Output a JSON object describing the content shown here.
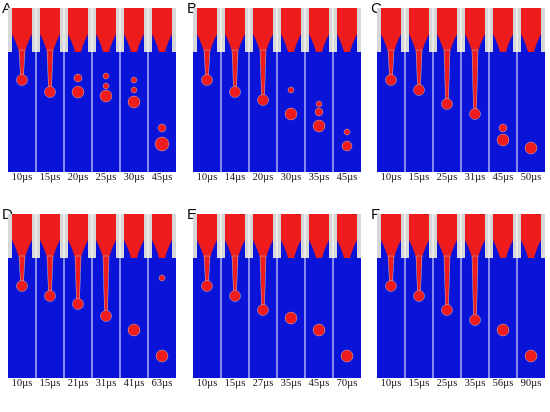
{
  "colors": {
    "fluid_red": "#ee1c1c",
    "fluid_blue": "#0a14d8",
    "wall_gray": "#d7d7d7",
    "interface_gray": "#b9b9c8"
  },
  "panels": [
    {
      "label": "A",
      "times": [
        "10µs",
        "15µs",
        "20µs",
        "25µs",
        "30µs",
        "45µs"
      ],
      "frames": [
        {
          "lig": 28,
          "drops": []
        },
        {
          "lig": 40,
          "drops": []
        },
        {
          "lig": 0,
          "drops": [
            [
              26,
              4
            ],
            [
              40,
              6
            ]
          ]
        },
        {
          "lig": 0,
          "drops": [
            [
              24,
              3
            ],
            [
              34,
              3
            ],
            [
              44,
              6
            ]
          ]
        },
        {
          "lig": 0,
          "drops": [
            [
              28,
              3
            ],
            [
              38,
              3
            ],
            [
              50,
              6
            ]
          ]
        },
        {
          "lig": 0,
          "drops": [
            [
              76,
              4
            ],
            [
              92,
              7
            ]
          ]
        }
      ]
    },
    {
      "label": "B",
      "times": [
        "10µs",
        "14µs",
        "20µs",
        "30µs",
        "35µs",
        "45µs"
      ],
      "frames": [
        {
          "lig": 28,
          "drops": []
        },
        {
          "lig": 40,
          "drops": []
        },
        {
          "lig": 48,
          "drops": []
        },
        {
          "lig": 0,
          "drops": [
            [
              38,
              3
            ],
            [
              62,
              6
            ]
          ]
        },
        {
          "lig": 0,
          "drops": [
            [
              52,
              3
            ],
            [
              60,
              4
            ],
            [
              74,
              6
            ]
          ]
        },
        {
          "lig": 0,
          "drops": [
            [
              80,
              3
            ],
            [
              94,
              5
            ]
          ]
        }
      ]
    },
    {
      "label": "C",
      "times": [
        "10µs",
        "15µs",
        "25µs",
        "31µs",
        "45µs",
        "50µs"
      ],
      "frames": [
        {
          "lig": 28,
          "drops": []
        },
        {
          "lig": 38,
          "drops": []
        },
        {
          "lig": 52,
          "drops": []
        },
        {
          "lig": 62,
          "drops": []
        },
        {
          "lig": 0,
          "drops": [
            [
              76,
              4
            ],
            [
              88,
              6
            ]
          ]
        },
        {
          "lig": 0,
          "drops": [
            [
              96,
              6
            ]
          ]
        }
      ]
    },
    {
      "label": "D",
      "times": [
        "10µs",
        "15µs",
        "21µs",
        "31µs",
        "41µs",
        "63µs"
      ],
      "frames": [
        {
          "lig": 28,
          "drops": []
        },
        {
          "lig": 38,
          "drops": []
        },
        {
          "lig": 46,
          "drops": []
        },
        {
          "lig": 58,
          "drops": []
        },
        {
          "lig": 0,
          "drops": [
            [
              72,
              6
            ]
          ]
        },
        {
          "lig": 0,
          "drops": [
            [
              20,
              3
            ],
            [
              98,
              6
            ]
          ]
        }
      ]
    },
    {
      "label": "E",
      "times": [
        "10µs",
        "15µs",
        "27µs",
        "35µs",
        "45µs",
        "70µs"
      ],
      "frames": [
        {
          "lig": 28,
          "drops": []
        },
        {
          "lig": 38,
          "drops": []
        },
        {
          "lig": 52,
          "drops": []
        },
        {
          "lig": 0,
          "drops": [
            [
              60,
              6
            ]
          ]
        },
        {
          "lig": 0,
          "drops": [
            [
              72,
              6
            ]
          ]
        },
        {
          "lig": 0,
          "drops": [
            [
              98,
              6
            ]
          ]
        }
      ]
    },
    {
      "label": "F",
      "times": [
        "10µs",
        "15µs",
        "25µs",
        "35µs",
        "56µs",
        "90µs"
      ],
      "frames": [
        {
          "lig": 28,
          "drops": []
        },
        {
          "lig": 38,
          "drops": []
        },
        {
          "lig": 52,
          "drops": []
        },
        {
          "lig": 62,
          "drops": []
        },
        {
          "lig": 0,
          "drops": [
            [
              72,
              6
            ]
          ]
        },
        {
          "lig": 0,
          "drops": [
            [
              98,
              6
            ]
          ]
        }
      ]
    }
  ]
}
